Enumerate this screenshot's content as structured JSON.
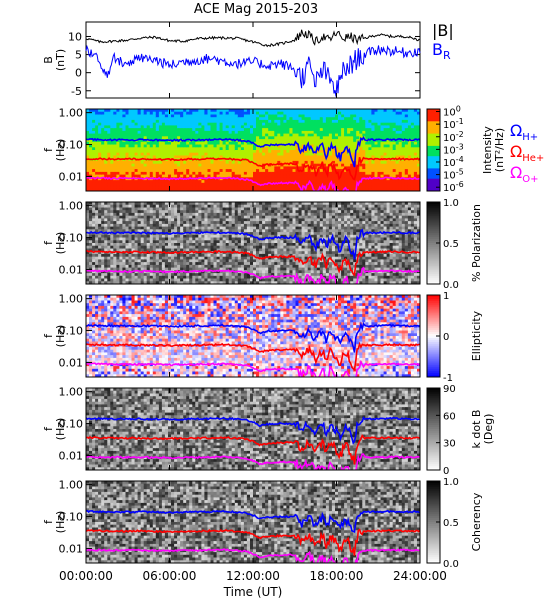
{
  "chart_data": [
    {
      "type": "line",
      "title": "ACE Mag 2015-203",
      "ylabel": "B",
      "yunit": "(nT)",
      "ylim": [
        -7,
        14
      ],
      "yticks": [
        "10",
        "5",
        "0",
        "-5"
      ],
      "ytick_values": [
        10,
        5,
        0,
        -5
      ],
      "series": [
        {
          "name": "|B|",
          "color": "#000000",
          "x": [
            0,
            1,
            2,
            3,
            4,
            5,
            6,
            7,
            8,
            9,
            10,
            11,
            12,
            13,
            14,
            15,
            15.5,
            16,
            16.5,
            17,
            17.5,
            18,
            18.5,
            19,
            19.5,
            20,
            21,
            22,
            23,
            24
          ],
          "y": [
            9.5,
            8.5,
            8.7,
            9.0,
            9.6,
            9.8,
            8.8,
            8.7,
            9.4,
            9.6,
            9.6,
            9.4,
            8.5,
            7.5,
            8.0,
            9.0,
            11.0,
            10.5,
            8.5,
            10.0,
            9.0,
            11.0,
            9.5,
            10.0,
            9.0,
            9.5,
            10.5,
            10.0,
            10.0,
            9.0
          ]
        },
        {
          "name": "B",
          "subscript": "R",
          "color": "#0000ff",
          "x": [
            0,
            0.5,
            1,
            1.5,
            2,
            3,
            4,
            5,
            6,
            7,
            8,
            9,
            10,
            11,
            12,
            13,
            14,
            15,
            15.5,
            16,
            16.5,
            17,
            17.5,
            18,
            18.5,
            19,
            19.5,
            20,
            21,
            22,
            23,
            24
          ],
          "y": [
            7.0,
            5.0,
            3.0,
            -1.0,
            4.0,
            2.5,
            4.0,
            3.5,
            2.0,
            3.0,
            3.5,
            4.0,
            3.0,
            2.5,
            3.0,
            2.0,
            2.5,
            1.0,
            -1.5,
            2.0,
            -3.0,
            1.0,
            -2.0,
            -5.0,
            0.5,
            2.0,
            4.0,
            5.0,
            6.5,
            6.0,
            5.5,
            6.0
          ]
        }
      ]
    }
  ],
  "time_axis": {
    "xlabel": "Time (UT)",
    "xlim_hours": [
      0,
      24
    ],
    "ticks": [
      "00:00:00",
      "06:00:00",
      "12:00:00",
      "18:00:00",
      "24:00:00"
    ],
    "tick_hours": [
      0,
      6,
      12,
      18,
      24
    ]
  },
  "freq_axis": {
    "ylabel": "f",
    "yunit": "(Hz)",
    "ticks": [
      "1.00",
      "0.10",
      "0.01"
    ],
    "tick_values": [
      1.0,
      0.1,
      0.01
    ],
    "scale": "log",
    "ylim": [
      0.0035,
      1.3
    ]
  },
  "gyro_lines": {
    "x": [
      0,
      2,
      4,
      6,
      8,
      10,
      11.5,
      12,
      12.5,
      13,
      14,
      15,
      15.5,
      16,
      16.5,
      17,
      17.3,
      17.6,
      18,
      18.3,
      18.6,
      19,
      19.3,
      19.6,
      20,
      21,
      22,
      23,
      24
    ],
    "h_plus": [
      0.145,
      0.14,
      0.14,
      0.135,
      0.14,
      0.145,
      0.13,
      0.11,
      0.085,
      0.095,
      0.1,
      0.1,
      0.06,
      0.1,
      0.05,
      0.095,
      0.04,
      0.1,
      0.055,
      0.035,
      0.09,
      0.045,
      0.025,
      0.12,
      0.14,
      0.14,
      0.145,
      0.14,
      0.14
    ],
    "colors": {
      "h_plus": "#0000ff",
      "he_plus": "#ff0000",
      "o_plus": "#ff00ff"
    },
    "ratios": {
      "he_plus": 0.25,
      "o_plus": 0.0625
    },
    "labels": [
      {
        "symbol": "Ω",
        "sub": "H+",
        "color": "#0000ff"
      },
      {
        "symbol": "Ω",
        "sub": "He+",
        "color": "#ff0000"
      },
      {
        "symbol": "Ω",
        "sub": "O+",
        "color": "#ff00ff"
      }
    ]
  },
  "spectrograms": [
    {
      "id": "intensity",
      "colorscale": "rainbow",
      "colorbar_label": "Intensity",
      "colorbar_unit": "(nT²/Hz)",
      "ticks": [
        {
          "base": "10",
          "exp": "0"
        },
        {
          "base": "10",
          "exp": "-1"
        },
        {
          "base": "10",
          "exp": "-2"
        },
        {
          "base": "10",
          "exp": "-3"
        },
        {
          "base": "10",
          "exp": "-4"
        },
        {
          "base": "10",
          "exp": "-5"
        },
        {
          "base": "10",
          "exp": "-6"
        }
      ],
      "tick_values_log10": [
        0,
        -1,
        -2,
        -3,
        -4,
        -5,
        -6
      ],
      "range_log10": [
        -6.3,
        0.2
      ]
    },
    {
      "id": "polarization",
      "colorscale": "gray",
      "colorbar_label": "% Polarization",
      "ticks": [
        "1.0",
        "0.5",
        "0.0"
      ],
      "tick_values": [
        1.0,
        0.5,
        0.0
      ],
      "range": [
        0,
        1
      ]
    },
    {
      "id": "ellipticity",
      "colorscale": "bluewhitered",
      "colorbar_label": "Ellipticity",
      "ticks": [
        "1",
        "0",
        "-1"
      ],
      "tick_values": [
        1,
        0,
        -1
      ],
      "range": [
        -1,
        1
      ]
    },
    {
      "id": "kdotb",
      "colorscale": "gray",
      "colorbar_label": "k dot B",
      "colorbar_unit": "(Deg)",
      "ticks": [
        "90",
        "60",
        "30",
        "0"
      ],
      "tick_values": [
        90,
        60,
        30,
        0
      ],
      "range": [
        0,
        90
      ]
    },
    {
      "id": "coherency",
      "colorscale": "gray",
      "colorbar_label": "Coherency",
      "ticks": [
        "1.0",
        "0.5",
        "0.0"
      ],
      "tick_values": [
        1.0,
        0.5,
        0.0
      ],
      "range": [
        0,
        1
      ]
    }
  ]
}
